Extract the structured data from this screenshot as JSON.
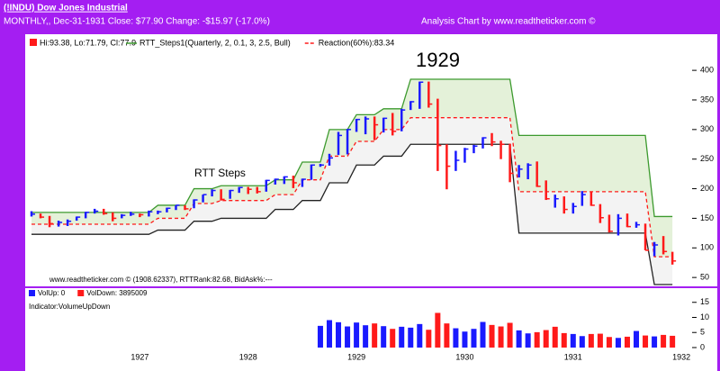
{
  "header": {
    "title": "(!INDU) Dow Jones Industrial",
    "info": "MONTHLY,, Dec-31-1931  Close: $77.90  Change: -$15.97  (-17.0%)",
    "credit": "Analysis Chart by www.readtheticker.com ©"
  },
  "chart_data": [
    {
      "type": "hlc",
      "price_legend": "Hi:93.38, Lo:71.79, Cl:77.9",
      "up_color": "#1a1aff",
      "down_color": "#ff1a1a",
      "annotations": [
        "1929",
        "RTT Steps",
        "www.readtheticker.com © (1908.62337), RTTRank:82.68, BidAsk%:---"
      ],
      "ylim": [
        35,
        458
      ],
      "yticks": [
        50,
        100,
        150,
        200,
        250,
        300,
        350,
        400
      ],
      "categories": [
        null,
        null,
        null,
        null,
        null,
        null,
        null,
        null,
        null,
        null,
        null,
        null,
        "1927",
        null,
        null,
        null,
        null,
        null,
        null,
        null,
        null,
        null,
        null,
        null,
        "1928",
        null,
        null,
        null,
        null,
        null,
        null,
        null,
        null,
        null,
        null,
        null,
        "1929",
        null,
        null,
        null,
        null,
        null,
        null,
        null,
        null,
        null,
        null,
        null,
        "1930",
        null,
        null,
        null,
        null,
        null,
        null,
        null,
        null,
        null,
        null,
        null,
        "1931",
        null,
        null,
        null,
        null,
        null,
        null,
        null,
        null,
        null,
        null,
        null,
        "1932"
      ],
      "high": [
        162,
        158,
        154,
        146,
        148,
        153,
        161,
        166,
        166,
        160,
        157,
        161,
        158,
        163,
        163,
        168,
        172,
        172,
        182,
        190,
        199,
        199,
        198,
        203,
        203,
        203,
        215,
        217,
        221,
        222,
        217,
        241,
        242,
        259,
        296,
        301,
        318,
        322,
        322,
        320,
        328,
        335,
        348,
        381,
        381,
        352,
        275,
        264,
        269,
        274,
        287,
        294,
        281,
        276,
        240,
        243,
        246,
        214,
        190,
        187,
        176,
        196,
        194,
        174,
        156,
        157,
        158,
        144,
        141,
        110,
        120,
        93.38,
        null
      ],
      "low": [
        153,
        150,
        135,
        136,
        137,
        146,
        150,
        158,
        156,
        145,
        150,
        154,
        152,
        153,
        157,
        160,
        164,
        164,
        167,
        177,
        187,
        180,
        183,
        193,
        191,
        192,
        195,
        207,
        208,
        201,
        203,
        215,
        237,
        239,
        257,
        258,
        296,
        292,
        282,
        295,
        290,
        297,
        333,
        335,
        337,
        230,
        199,
        230,
        244,
        260,
        268,
        272,
        250,
        211,
        219,
        216,
        203,
        181,
        168,
        158,
        158,
        171,
        171,
        142,
        126,
        121,
        135,
        134,
        96,
        86,
        89,
        71.79,
        null
      ],
      "close": [
        157,
        152,
        141,
        143,
        145,
        152,
        160,
        162,
        158,
        150,
        155,
        157,
        156,
        161,
        161,
        167,
        172,
        166,
        181,
        190,
        197,
        182,
        197,
        202,
        199,
        195,
        214,
        216,
        220,
        210,
        216,
        240,
        240,
        252,
        290,
        300,
        317,
        318,
        308,
        319,
        297,
        333,
        347,
        380,
        343,
        273,
        238,
        248,
        267,
        272,
        286,
        279,
        275,
        226,
        233,
        240,
        204,
        183,
        183,
        165,
        170,
        190,
        172,
        151,
        128,
        150,
        136,
        139,
        96,
        105,
        93.87,
        77.9,
        null
      ],
      "series": [
        {
          "name": "RTT_Steps1(Quarterly, 2, 0.1, 3, 2.5, Bull)",
          "color": "#3c9a2e",
          "values": [
            160,
            160,
            160,
            160,
            160,
            160,
            160,
            160,
            160,
            160,
            160,
            160,
            160,
            160,
            172,
            172,
            172,
            172,
            200,
            200,
            200,
            205,
            205,
            205,
            205,
            205,
            205,
            215,
            215,
            215,
            245,
            245,
            245,
            300,
            300,
            300,
            325,
            325,
            325,
            335,
            335,
            335,
            385,
            385,
            385,
            385,
            385,
            385,
            385,
            385,
            385,
            385,
            385,
            385,
            290,
            290,
            290,
            290,
            290,
            290,
            290,
            290,
            290,
            290,
            290,
            290,
            290,
            290,
            290,
            153,
            153,
            153,
            null
          ]
        },
        {
          "name": "Reaction(60%):83.34",
          "color": "#ff1a1a",
          "values": [
            140,
            140,
            140,
            140,
            140,
            140,
            140,
            140,
            140,
            140,
            140,
            140,
            140,
            140,
            150,
            150,
            150,
            150,
            175,
            175,
            175,
            180,
            180,
            180,
            180,
            180,
            180,
            190,
            190,
            190,
            215,
            215,
            215,
            255,
            255,
            255,
            280,
            280,
            280,
            300,
            300,
            300,
            320,
            320,
            320,
            320,
            320,
            320,
            320,
            320,
            320,
            320,
            320,
            320,
            195,
            195,
            195,
            195,
            195,
            195,
            195,
            195,
            195,
            195,
            195,
            195,
            195,
            195,
            195,
            85,
            85,
            85,
            null
          ]
        },
        {
          "color": "#222222",
          "values": [
            123,
            123,
            123,
            123,
            123,
            123,
            123,
            123,
            123,
            123,
            123,
            123,
            123,
            123,
            130,
            130,
            130,
            130,
            145,
            145,
            145,
            150,
            150,
            150,
            150,
            150,
            150,
            165,
            165,
            165,
            180,
            180,
            180,
            210,
            210,
            210,
            240,
            240,
            240,
            255,
            255,
            255,
            275,
            275,
            275,
            275,
            275,
            275,
            275,
            275,
            275,
            275,
            275,
            275,
            125,
            125,
            125,
            125,
            125,
            125,
            125,
            125,
            125,
            125,
            125,
            125,
            125,
            125,
            125,
            38,
            38,
            38,
            null
          ]
        }
      ]
    },
    {
      "type": "bar",
      "indicator": "Indicator:VolumeUpDown",
      "ylim": [
        -1.8,
        19.7
      ],
      "yticks": [
        0,
        5,
        10,
        15
      ],
      "series": [
        {
          "name": "VolUp: 0",
          "color": "#1a1aff",
          "values": [
            null,
            null,
            null,
            null,
            null,
            null,
            null,
            null,
            null,
            null,
            null,
            null,
            null,
            null,
            null,
            null,
            null,
            null,
            null,
            null,
            null,
            null,
            null,
            null,
            null,
            null,
            null,
            null,
            null,
            null,
            null,
            null,
            7.2,
            9.1,
            8.4,
            7.0,
            8.3,
            7.4,
            null,
            7.1,
            null,
            6.9,
            6.6,
            7.8,
            null,
            null,
            null,
            6.4,
            5.3,
            6.2,
            8.5,
            null,
            null,
            null,
            5.7,
            4.7,
            null,
            null,
            null,
            null,
            4.5,
            3.8,
            null,
            null,
            null,
            3.2,
            null,
            5.5,
            null,
            3.7,
            null,
            null,
            null
          ]
        },
        {
          "name": "VolDown: 3895009",
          "color": "#ff1a1a",
          "values": [
            null,
            null,
            null,
            null,
            null,
            null,
            null,
            null,
            null,
            null,
            null,
            null,
            null,
            null,
            null,
            null,
            null,
            null,
            null,
            null,
            null,
            null,
            null,
            null,
            null,
            null,
            null,
            null,
            null,
            null,
            null,
            null,
            null,
            null,
            null,
            null,
            null,
            null,
            8.0,
            null,
            6.2,
            null,
            null,
            null,
            5.9,
            11.5,
            8.0,
            null,
            null,
            null,
            null,
            7.5,
            7.0,
            8.2,
            null,
            null,
            5.1,
            5.8,
            6.9,
            4.8,
            null,
            null,
            4.5,
            4.6,
            3.5,
            null,
            3.6,
            null,
            4.0,
            null,
            4.2,
            3.9,
            null
          ]
        }
      ]
    }
  ]
}
